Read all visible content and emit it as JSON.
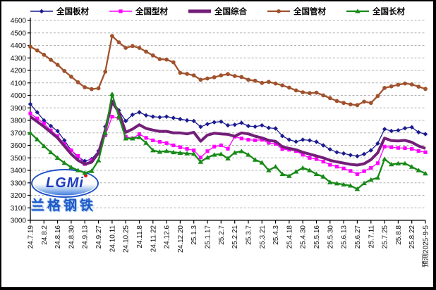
{
  "window": {
    "background": "#ffffff",
    "frame_color": "#000000"
  },
  "logo": {
    "text": "LGMi",
    "subtext": "兰格钢铁"
  },
  "axes": {
    "y_tick_labels": [
      "3000",
      "3100",
      "3200",
      "3300",
      "3400",
      "3500",
      "3600",
      "3700",
      "3800",
      "3900",
      "4000",
      "4100",
      "4200",
      "4300",
      "4400",
      "4500",
      "4600"
    ],
    "grid_color": "#b0b0b0",
    "axis_color": "#000000",
    "label_color": "#111111"
  },
  "chart_data": {
    "type": "line",
    "title": "",
    "xlabel": "",
    "ylabel": "",
    "ylim": [
      3000,
      4600
    ],
    "ytick_step": 100,
    "grid": "horizontal-dashed",
    "legend_position": "top",
    "n_points": 59,
    "x_tick_every": 2,
    "x_tick_labels": [
      "24.7.19",
      "24.8.2",
      "24.8.16",
      "24.8.30",
      "24.9.13",
      "24.9.27",
      "24.10.11",
      "24.10.25",
      "24.11.8",
      "24.11.22",
      "24.12.6",
      "24.12.20",
      "25.1.3",
      "25.1.17",
      "25.2.7",
      "25.2.21",
      "25.3.7",
      "25.3.21",
      "25.4.3",
      "25.4.18",
      "25.4.30",
      "25.5.16",
      "25.5.30",
      "25.6.13",
      "25.6.27",
      "25.7.11",
      "25.7.25",
      "25.8.8",
      "25.8.22",
      "预测2025-9-5"
    ],
    "series": [
      {
        "name": "全国板材",
        "color": "#1B1B8F",
        "marker": "diamond",
        "width": 1.3,
        "values": [
          3930,
          3865,
          3800,
          3755,
          3715,
          3640,
          3560,
          3505,
          3475,
          3490,
          3555,
          3750,
          3950,
          3880,
          3795,
          3845,
          3865,
          3840,
          3830,
          3825,
          3830,
          3820,
          3810,
          3800,
          3795,
          3748,
          3770,
          3785,
          3790,
          3760,
          3765,
          3780,
          3755,
          3750,
          3760,
          3740,
          3735,
          3675,
          3645,
          3630,
          3645,
          3640,
          3628,
          3600,
          3568,
          3545,
          3535,
          3522,
          3513,
          3530,
          3560,
          3615,
          3730,
          3715,
          3720,
          3737,
          3745,
          3705,
          3690
        ]
      },
      {
        "name": "全国型材",
        "color": "#FF00FF",
        "marker": "square",
        "width": 1.3,
        "values": [
          3855,
          3815,
          3775,
          3720,
          3675,
          3610,
          3560,
          3515,
          3450,
          3480,
          3535,
          3680,
          3830,
          3820,
          3670,
          3655,
          3690,
          3660,
          3640,
          3628,
          3618,
          3600,
          3585,
          3572,
          3560,
          3503,
          3553,
          3590,
          3600,
          3573,
          3670,
          3655,
          3645,
          3640,
          3645,
          3620,
          3612,
          3570,
          3565,
          3555,
          3525,
          3500,
          3490,
          3470,
          3445,
          3430,
          3415,
          3395,
          3370,
          3393,
          3420,
          3457,
          3590,
          3585,
          3580,
          3578,
          3572,
          3555,
          3545
        ]
      },
      {
        "name": "全国综合",
        "color": "#731F78",
        "marker": "none",
        "width": 4,
        "values": [
          3830,
          3790,
          3750,
          3705,
          3660,
          3595,
          3530,
          3480,
          3450,
          3465,
          3540,
          3720,
          3950,
          3865,
          3705,
          3730,
          3765,
          3735,
          3722,
          3712,
          3712,
          3700,
          3700,
          3692,
          3705,
          3633,
          3682,
          3697,
          3692,
          3688,
          3673,
          3700,
          3692,
          3673,
          3660,
          3640,
          3632,
          3590,
          3575,
          3565,
          3545,
          3530,
          3515,
          3500,
          3480,
          3468,
          3458,
          3448,
          3442,
          3453,
          3485,
          3541,
          3658,
          3638,
          3635,
          3640,
          3625,
          3595,
          3575
        ]
      },
      {
        "name": "全国管材",
        "color": "#A0522D",
        "marker": "circle",
        "width": 2.3,
        "values": [
          4390,
          4360,
          4325,
          4285,
          4245,
          4195,
          4150,
          4105,
          4065,
          4050,
          4057,
          4190,
          4475,
          4425,
          4380,
          4395,
          4380,
          4350,
          4320,
          4290,
          4287,
          4265,
          4180,
          4172,
          4160,
          4125,
          4135,
          4145,
          4160,
          4170,
          4155,
          4147,
          4125,
          4117,
          4100,
          4108,
          4095,
          4080,
          4062,
          4040,
          4025,
          4018,
          4022,
          4000,
          3978,
          3955,
          3940,
          3928,
          3922,
          3950,
          3940,
          3995,
          4060,
          4072,
          4085,
          4095,
          4088,
          4070,
          4052
        ]
      },
      {
        "name": "全国长材",
        "color": "#178A17",
        "marker": "triangle-up",
        "width": 2.3,
        "values": [
          3700,
          3648,
          3595,
          3545,
          3500,
          3460,
          3425,
          3400,
          3380,
          3395,
          3480,
          3700,
          4010,
          3830,
          3655,
          3655,
          3665,
          3620,
          3560,
          3548,
          3555,
          3545,
          3540,
          3535,
          3532,
          3468,
          3503,
          3525,
          3530,
          3495,
          3542,
          3553,
          3525,
          3485,
          3462,
          3400,
          3430,
          3370,
          3355,
          3390,
          3420,
          3400,
          3370,
          3350,
          3305,
          3295,
          3287,
          3278,
          3250,
          3297,
          3325,
          3341,
          3490,
          3448,
          3455,
          3455,
          3428,
          3400,
          3375
        ]
      }
    ]
  }
}
